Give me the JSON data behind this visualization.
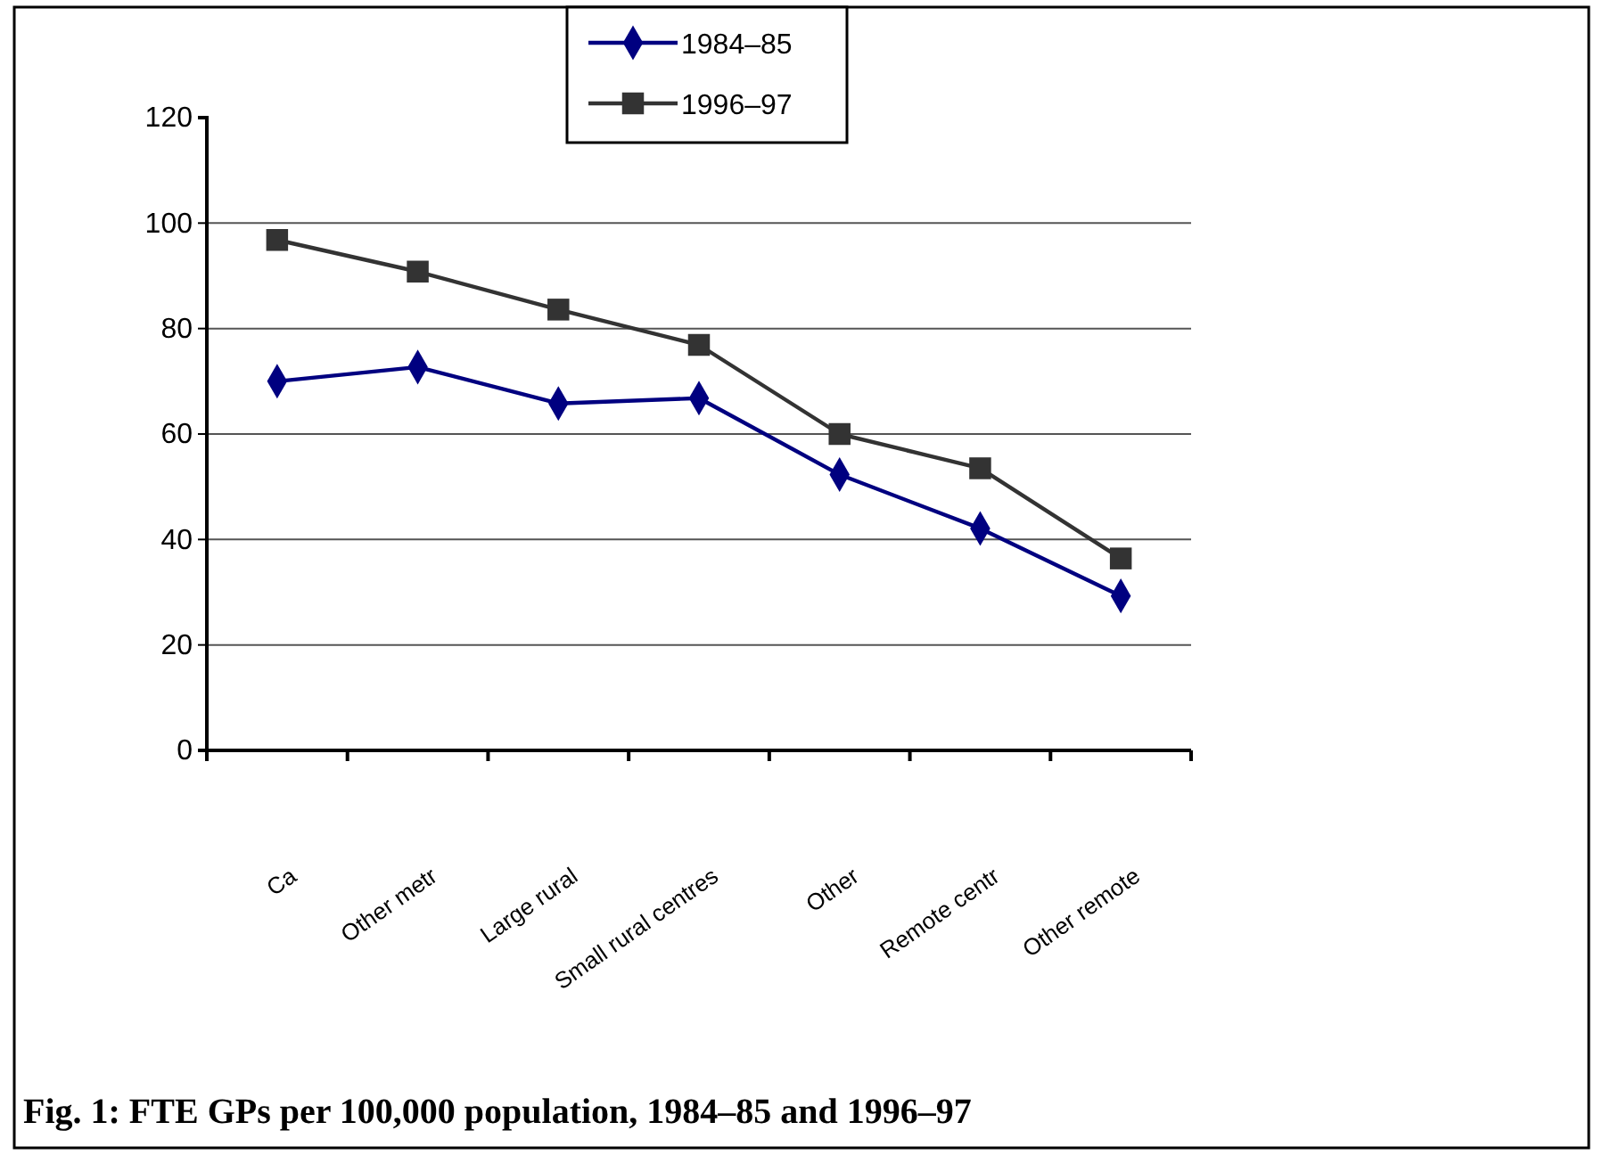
{
  "chart_data": {
    "type": "line",
    "title": "Fig. 1: FTE GPs per 100,000 population, 1984–85 and 1996–97",
    "categories": [
      "Ca",
      "Other metr",
      "Large rural",
      "Small rural centres",
      "Other",
      "Remote centr",
      "Other remote"
    ],
    "series": [
      {
        "name": "1984–85",
        "color": "#000080",
        "marker": "diamond",
        "values": [
          70,
          72.7,
          65.8,
          66.8,
          52.3,
          42.1,
          29.3
        ]
      },
      {
        "name": "1996–97",
        "color": "#333333",
        "marker": "square",
        "values": [
          96.8,
          90.8,
          83.6,
          76.9,
          60,
          53.5,
          36.4
        ]
      }
    ],
    "ylim": [
      0,
      120
    ],
    "yticks": [
      0,
      20,
      40,
      60,
      80,
      100,
      120
    ],
    "grid": "y",
    "legend": "top"
  }
}
